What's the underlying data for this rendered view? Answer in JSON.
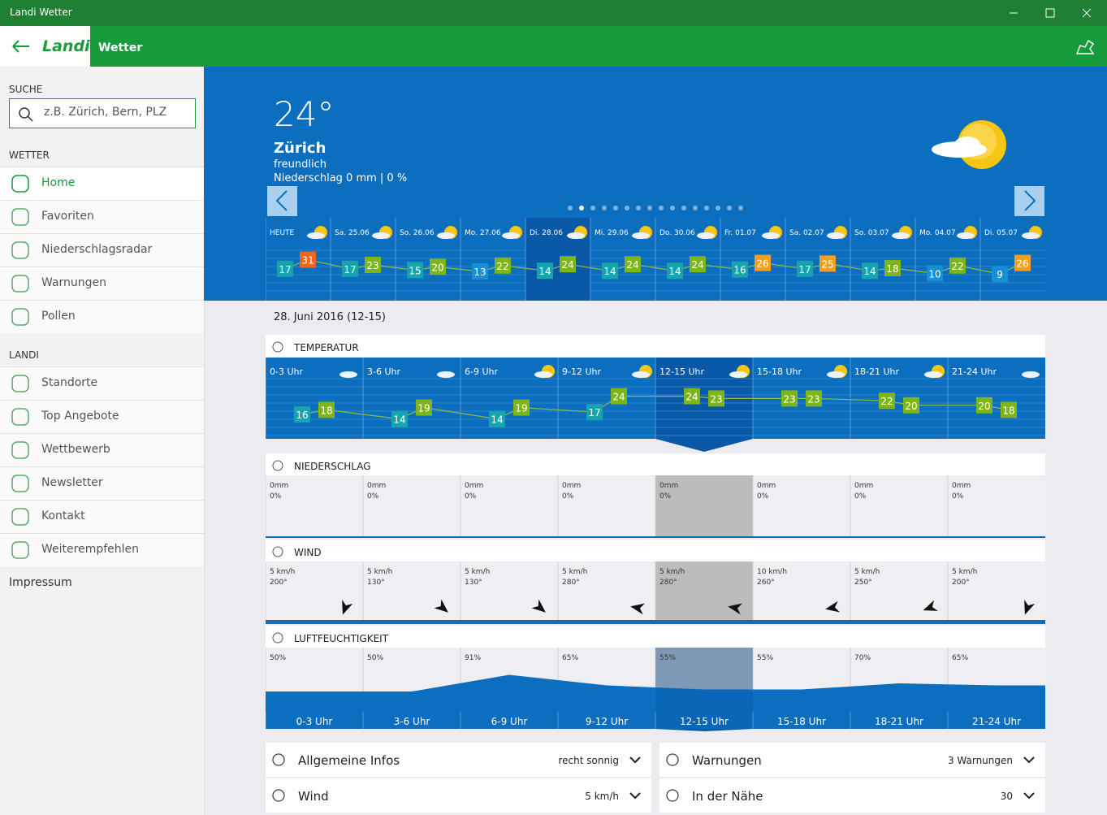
{
  "window": {
    "title": "Landi Wetter"
  },
  "header": {
    "logo": "Landi",
    "title": "Wetter"
  },
  "sidebar": {
    "search_label": "SUCHE",
    "search_placeholder": "z.B. Zürich, Bern, PLZ",
    "weather_label": "WETTER",
    "weather_items": [
      "Home",
      "Favoriten",
      "Niederschlagsradar",
      "Warnungen",
      "Pollen"
    ],
    "landi_label": "LANDI",
    "landi_items": [
      "Standorte",
      "Top Angebote",
      "Wettbewerb",
      "Newsletter",
      "Kontakt",
      "Weiterempfehlen"
    ],
    "impressum": "Impressum"
  },
  "current": {
    "temperature": "24°",
    "city": "Zürich",
    "condition": "freundlich",
    "precipitation": "Niederschlag 0 mm | 0 %"
  },
  "forecast": {
    "days": [
      {
        "label": "HEUTE",
        "temps": [
          17,
          31
        ]
      },
      {
        "label": "Sa. 25.06",
        "temps": [
          17,
          23
        ]
      },
      {
        "label": "So. 26.06",
        "temps": [
          15,
          20
        ]
      },
      {
        "label": "Mo. 27.06",
        "temps": [
          13,
          22
        ]
      },
      {
        "label": "Di. 28.06",
        "temps": [
          14,
          24
        ]
      },
      {
        "label": "Mi. 29.06",
        "temps": [
          14,
          24
        ]
      },
      {
        "label": "Do. 30.06",
        "temps": [
          14,
          24
        ]
      },
      {
        "label": "Fr. 01.07",
        "temps": [
          16,
          26
        ]
      },
      {
        "label": "Sa. 02.07",
        "temps": [
          17,
          25
        ]
      },
      {
        "label": "So. 03.07",
        "temps": [
          14,
          18
        ]
      },
      {
        "label": "Mo. 04.07",
        "temps": [
          10,
          22
        ]
      },
      {
        "label": "Di. 05.07",
        "temps": [
          9,
          26
        ]
      }
    ]
  },
  "detail": {
    "date": "28. Juni 2016 (12-15)",
    "periods": [
      "0-3 Uhr",
      "3-6 Uhr",
      "6-9 Uhr",
      "9-12 Uhr",
      "12-15 Uhr",
      "15-18 Uhr",
      "18-21 Uhr",
      "21-24 Uhr"
    ],
    "temperature": {
      "label": "TEMPERATUR",
      "temps": [
        [
          16,
          18
        ],
        [
          14,
          19
        ],
        [
          14,
          19
        ],
        [
          17,
          24
        ],
        [
          24,
          23
        ],
        [
          23,
          23
        ],
        [
          22,
          20
        ],
        [
          20,
          18
        ]
      ]
    },
    "precipitation": {
      "label": "NIEDERSCHLAG",
      "amount": [
        "0mm",
        "0mm",
        "0mm",
        "0mm",
        "0mm",
        "0mm",
        "0mm",
        "0mm"
      ],
      "probability": [
        "0%",
        "0%",
        "0%",
        "0%",
        "0%",
        "0%",
        "0%",
        "0%"
      ]
    },
    "wind": {
      "label": "WIND",
      "speed": [
        "5 km/h",
        "5 km/h",
        "5 km/h",
        "5 km/h",
        "5 km/h",
        "10 km/h",
        "5 km/h",
        "5 km/h"
      ],
      "direction": [
        200,
        130,
        130,
        280,
        280,
        260,
        250,
        200
      ],
      "direction_labels": [
        "200°",
        "130°",
        "130°",
        "280°",
        "280°",
        "260°",
        "250°",
        "200°"
      ]
    },
    "humidity": {
      "label": "LUFTFEUCHTIGKEIT",
      "values": [
        50,
        50,
        91,
        65,
        55,
        55,
        70,
        65
      ],
      "value_labels": [
        "50%",
        "50%",
        "91%",
        "65%",
        "55%",
        "55%",
        "70%",
        "65%"
      ]
    }
  },
  "info": [
    {
      "label": "Allgemeine Infos",
      "value": "recht sonnig"
    },
    {
      "label": "Warnungen",
      "value": "3 Warnungen"
    },
    {
      "label": "Wind",
      "value": "5 km/h"
    },
    {
      "label": "In der Nähe",
      "value": "30"
    }
  ]
}
